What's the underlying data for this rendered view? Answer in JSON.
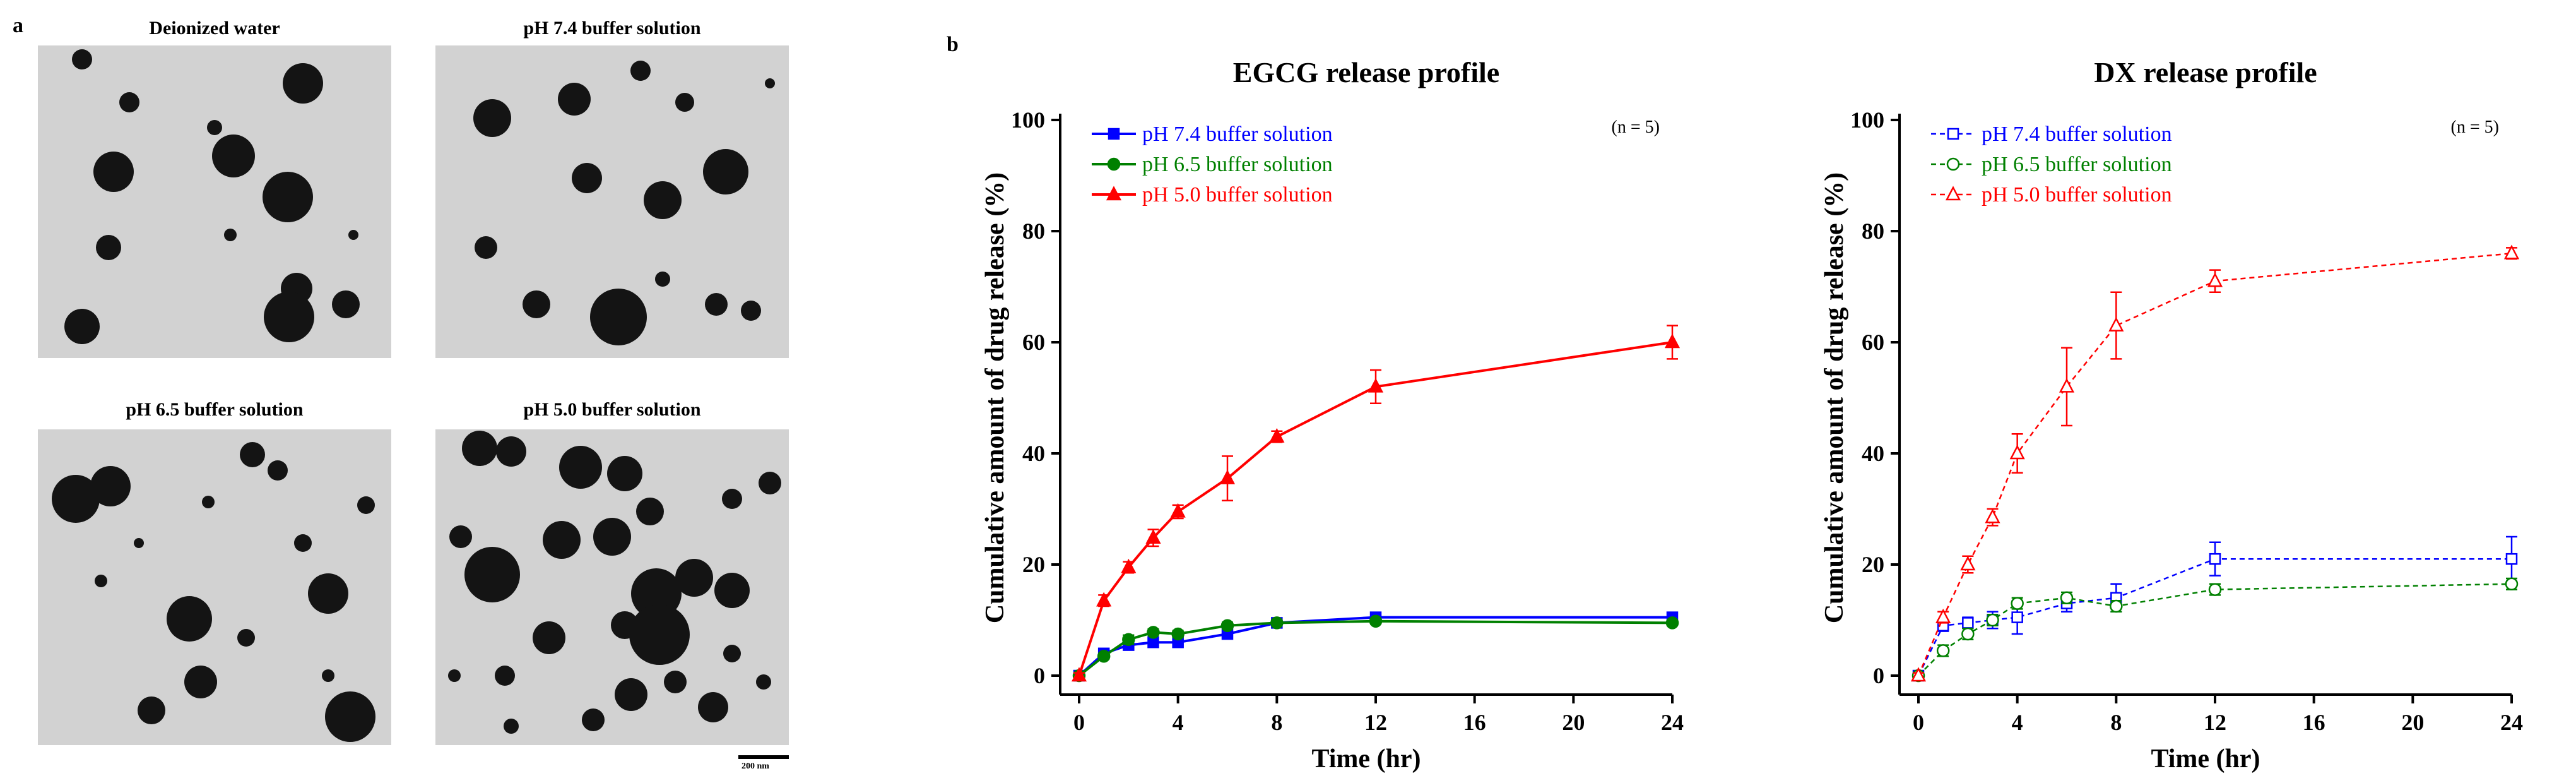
{
  "panel_a": {
    "letter": "a",
    "images": [
      {
        "title": "Deionized water"
      },
      {
        "title": "pH 7.4 buffer solution"
      },
      {
        "title": "pH 6.5 buffer solution"
      },
      {
        "title": "pH 5.0 buffer solution"
      }
    ],
    "scale_bar": "200 nm"
  },
  "panel_b": {
    "letter": "b"
  },
  "chart_data": [
    {
      "type": "line",
      "title": "EGCG release profile",
      "xlabel": "Time (hr)",
      "ylabel": "Cumulative amount of drug release (%)",
      "xlim": [
        0,
        24
      ],
      "ylim": [
        0,
        100
      ],
      "xticks": [
        0,
        4,
        8,
        12,
        16,
        20,
        24
      ],
      "yticks": [
        0,
        20,
        40,
        60,
        80,
        100
      ],
      "annotation": "(n = 5)",
      "legend_position": "top-left",
      "series": [
        {
          "name": "pH 7.4 buffer solution",
          "color": "#0000ff",
          "marker": "square",
          "filled": true,
          "dashed": false,
          "x": [
            0,
            1,
            2,
            3,
            4,
            6,
            8,
            12,
            24
          ],
          "y": [
            0,
            4,
            5.5,
            6,
            6,
            7.5,
            9.5,
            10.5,
            10.5
          ],
          "err": [
            0.5,
            0.5,
            0.5,
            0.5,
            0.5,
            0.5,
            0.5,
            0.5,
            0.5
          ]
        },
        {
          "name": "pH 6.5 buffer solution",
          "color": "#008000",
          "marker": "circle",
          "filled": true,
          "dashed": false,
          "x": [
            0,
            1,
            2,
            3,
            4,
            6,
            8,
            12,
            24
          ],
          "y": [
            0,
            3.5,
            6.5,
            7.8,
            7.5,
            9,
            9.5,
            9.8,
            9.5
          ],
          "err": [
            0.5,
            0.5,
            0.8,
            0.6,
            0.6,
            0.6,
            0.5,
            0.5,
            0.5
          ]
        },
        {
          "name": "pH 5.0 buffer solution",
          "color": "#ff0000",
          "marker": "triangle",
          "filled": true,
          "dashed": false,
          "x": [
            0,
            1,
            2,
            3,
            4,
            6,
            8,
            12,
            24
          ],
          "y": [
            0,
            13.5,
            19.5,
            24.8,
            29.5,
            35.5,
            43,
            52,
            60
          ],
          "err": [
            0.5,
            1,
            1,
            1.5,
            1.2,
            4,
            1,
            3,
            3
          ]
        }
      ]
    },
    {
      "type": "line",
      "title": "DX release profile",
      "xlabel": "Time (hr)",
      "ylabel": "Cumulative amount of drug release (%)",
      "xlim": [
        0,
        24
      ],
      "ylim": [
        0,
        100
      ],
      "xticks": [
        0,
        4,
        8,
        12,
        16,
        20,
        24
      ],
      "yticks": [
        0,
        20,
        40,
        60,
        80,
        100
      ],
      "annotation": "(n = 5)",
      "legend_position": "top-left",
      "series": [
        {
          "name": "pH 7.4 buffer solution",
          "color": "#0000ff",
          "marker": "square",
          "filled": false,
          "dashed": true,
          "x": [
            0,
            1,
            2,
            3,
            4,
            6,
            8,
            12,
            24
          ],
          "y": [
            0,
            9,
            9.5,
            10,
            10.5,
            13,
            14,
            21,
            21
          ],
          "err": [
            0.5,
            1,
            1,
            1.5,
            3,
            1.5,
            2.5,
            3,
            4
          ]
        },
        {
          "name": "pH 6.5 buffer solution",
          "color": "#008000",
          "marker": "circle",
          "filled": false,
          "dashed": true,
          "x": [
            0,
            1,
            2,
            3,
            4,
            6,
            8,
            12,
            24
          ],
          "y": [
            0,
            4.5,
            7.5,
            10,
            13,
            14,
            12.5,
            15.5,
            16.5
          ],
          "err": [
            0.5,
            1,
            1,
            1,
            1,
            1,
            1,
            1,
            1
          ]
        },
        {
          "name": "pH 5.0 buffer solution",
          "color": "#ff0000",
          "marker": "triangle",
          "filled": false,
          "dashed": true,
          "x": [
            0,
            1,
            2,
            3,
            4,
            6,
            8,
            12,
            24
          ],
          "y": [
            0,
            10.5,
            20,
            28.5,
            40,
            52,
            63,
            71,
            76
          ],
          "err": [
            0.5,
            1,
            1.5,
            1.5,
            3.5,
            7,
            6,
            2,
            1
          ]
        }
      ]
    }
  ]
}
